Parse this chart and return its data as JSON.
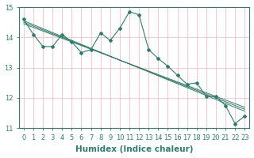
{
  "xlabel": "Humidex (Indice chaleur)",
  "x_data": [
    0,
    1,
    2,
    3,
    4,
    5,
    6,
    7,
    8,
    9,
    10,
    11,
    12,
    13,
    14,
    15,
    16,
    17,
    18,
    19,
    20,
    21,
    22,
    23
  ],
  "y_main": [
    14.6,
    14.1,
    13.7,
    13.7,
    14.1,
    13.85,
    13.5,
    13.6,
    14.15,
    13.9,
    14.3,
    14.85,
    14.75,
    13.6,
    13.3,
    13.05,
    12.75,
    12.45,
    12.5,
    12.05,
    12.05,
    11.75,
    11.15,
    11.4
  ],
  "y_reg1": [
    14.55,
    14.42,
    14.29,
    14.16,
    14.03,
    13.9,
    13.77,
    13.64,
    13.51,
    13.38,
    13.25,
    13.12,
    12.99,
    12.86,
    12.73,
    12.6,
    12.47,
    12.34,
    12.21,
    12.08,
    11.95,
    11.82,
    11.69,
    11.56
  ],
  "y_reg2": [
    14.5,
    14.375,
    14.25,
    14.125,
    14.0,
    13.875,
    13.75,
    13.625,
    13.5,
    13.375,
    13.25,
    13.125,
    13.0,
    12.875,
    12.75,
    12.625,
    12.5,
    12.375,
    12.25,
    12.125,
    12.0,
    11.875,
    11.75,
    11.625
  ],
  "y_reg3": [
    14.45,
    14.33,
    14.21,
    14.09,
    13.97,
    13.85,
    13.73,
    13.61,
    13.49,
    13.37,
    13.25,
    13.13,
    13.01,
    12.89,
    12.77,
    12.65,
    12.53,
    12.41,
    12.29,
    12.17,
    12.05,
    11.93,
    11.81,
    11.69
  ],
  "ylim": [
    11,
    15
  ],
  "xlim": [
    -0.5,
    23.5
  ],
  "line_color": "#2e7d6e",
  "bg_color": "#ffffff",
  "plot_bg_color": "#ffffff",
  "grid_color": "#f5c0c0",
  "tick_fontsize": 6,
  "label_fontsize": 7.5
}
